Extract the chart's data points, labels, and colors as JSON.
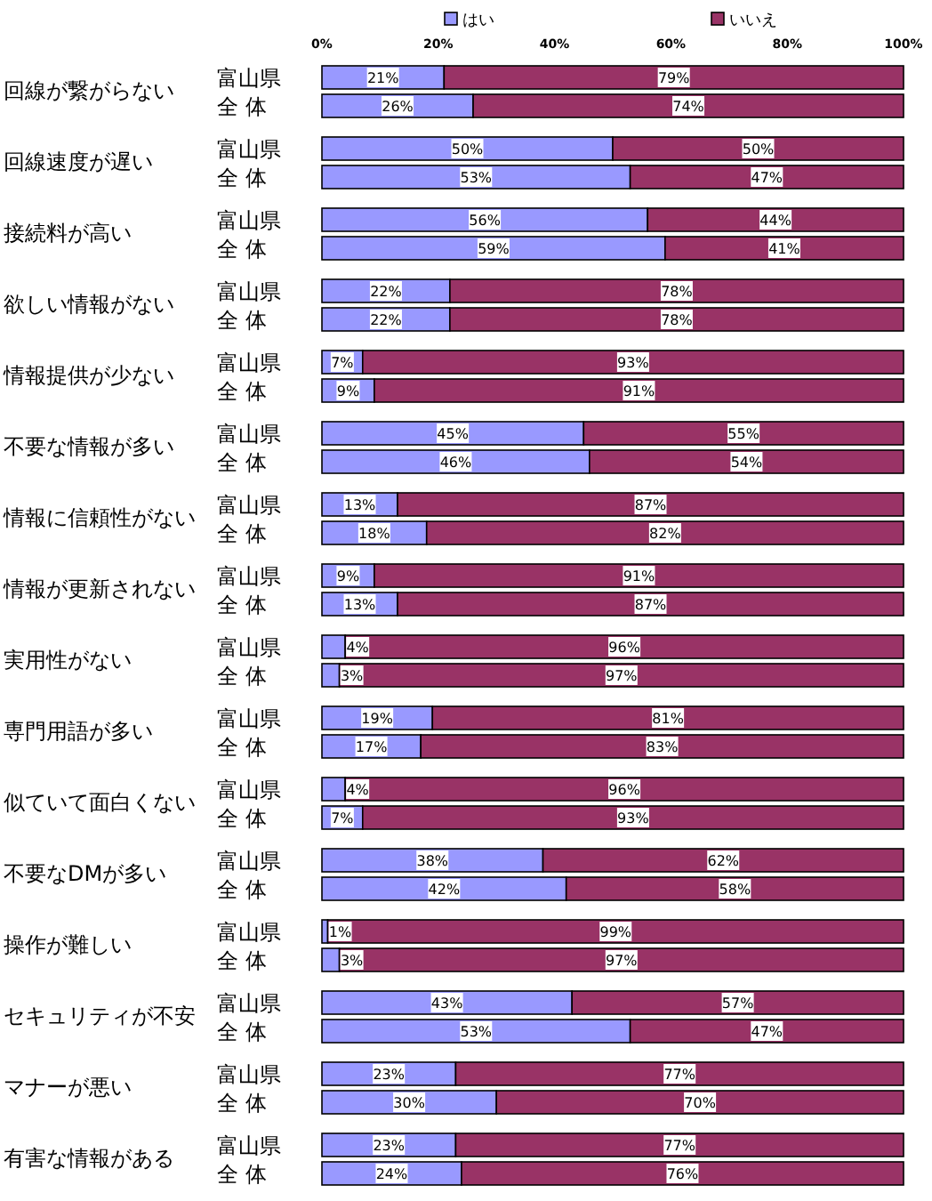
{
  "chart_data": {
    "type": "bar",
    "orientation": "horizontal",
    "stacked": true,
    "legend": "top",
    "categories": [
      "富山県",
      "全 体",
      "富山県",
      "全 体",
      "富山県",
      "全 体",
      "富山県",
      "全 体",
      "富山県",
      "全 体",
      "富山県",
      "全 体",
      "富山県",
      "全 体",
      "富山県",
      "全 体",
      "富山県",
      "全 体",
      "富山県",
      "全 体",
      "富山県",
      "全 体",
      "富山県",
      "全 体",
      "富山県",
      "全 体",
      "富山県",
      "全 体",
      "富山県",
      "全 体",
      "富山県",
      "全 体"
    ],
    "annotations": [
      "回線が繋がらない",
      "回線速度が遅い",
      "接続料が高い",
      "欲しい情報がない",
      "情報提供が少ない",
      "不要な情報が多い",
      "情報に信頼性がない",
      "情報が更新されない",
      "実用性がない",
      "専門用語が多い",
      "似ていて面白くない",
      "不要なDMが多い",
      "操作が難しい",
      "セキュリティが不安",
      "マナーが悪い",
      "有害な情報がある"
    ],
    "xlim": [
      0,
      100
    ],
    "xticks": [
      {
        "value": 0,
        "label": "0%"
      },
      {
        "value": 20,
        "label": "20%"
      },
      {
        "value": 40,
        "label": "40%"
      },
      {
        "value": 60,
        "label": "60%"
      },
      {
        "value": 80,
        "label": "80%"
      },
      {
        "value": 100,
        "label": "100%"
      }
    ],
    "series": [
      {
        "name": "はい",
        "color": "#9999ff",
        "values": [
          21,
          26,
          50,
          53,
          56,
          59,
          22,
          22,
          7,
          9,
          45,
          46,
          13,
          18,
          9,
          13,
          4,
          3,
          19,
          17,
          4,
          7,
          38,
          42,
          1,
          3,
          43,
          53,
          23,
          30,
          23,
          24
        ],
        "value_labels": [
          "21%",
          "26%",
          "50%",
          "53%",
          "56%",
          "59%",
          "22%",
          "22%",
          "7%",
          "9%",
          "45%",
          "46%",
          "13%",
          "18%",
          "9%",
          "13%",
          "4%",
          "3%",
          "19%",
          "17%",
          "4%",
          "7%",
          "38%",
          "42%",
          "1%",
          "3%",
          "43%",
          "53%",
          "23%",
          "30%",
          "23%",
          "24%"
        ]
      },
      {
        "name": "いいえ",
        "color": "#993366",
        "values": [
          79,
          74,
          50,
          47,
          44,
          41,
          78,
          78,
          93,
          91,
          55,
          54,
          87,
          82,
          91,
          87,
          96,
          97,
          81,
          83,
          96,
          93,
          62,
          58,
          99,
          97,
          57,
          47,
          77,
          70,
          77,
          76
        ],
        "value_labels": [
          "79%",
          "74%",
          "50%",
          "47%",
          "44%",
          "41%",
          "78%",
          "78%",
          "93%",
          "91%",
          "55%",
          "54%",
          "87%",
          "82%",
          "91%",
          "87%",
          "96%",
          "97%",
          "81%",
          "83%",
          "96%",
          "93%",
          "62%",
          "58%",
          "99%",
          "97%",
          "57%",
          "47%",
          "77%",
          "70%",
          "77%",
          "76%"
        ]
      }
    ]
  }
}
